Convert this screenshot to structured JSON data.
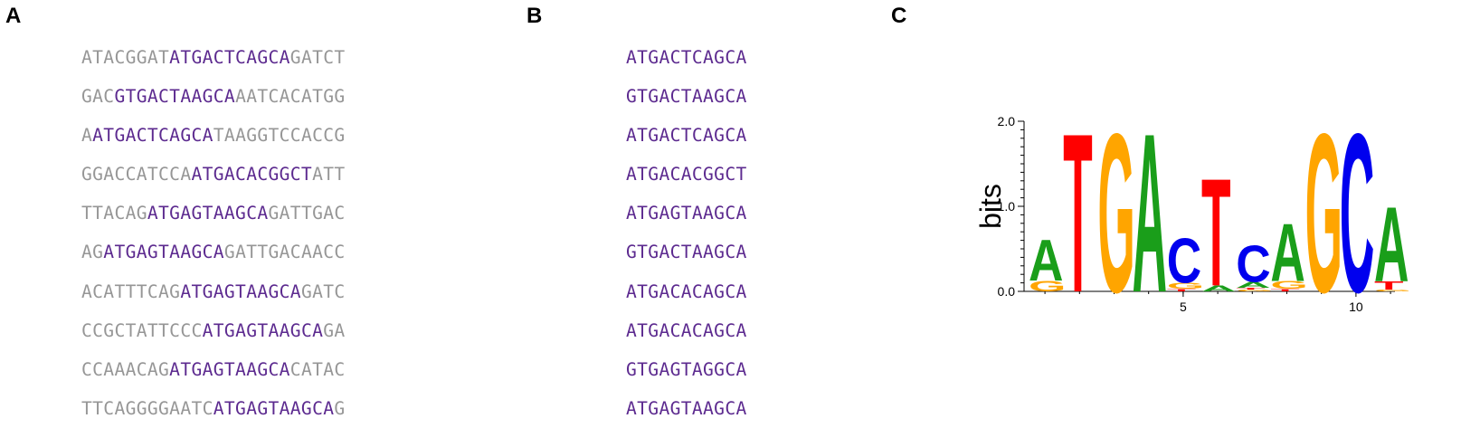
{
  "panels": {
    "a": {
      "label": "A"
    },
    "b": {
      "label": "B"
    },
    "c": {
      "label": "C"
    }
  },
  "sequences": [
    {
      "pre": "ATACGGAT",
      "site": "ATGACTCAGCA",
      "post": "GATCT"
    },
    {
      "pre": "GAC",
      "site": "GTGACTAAGCA",
      "post": "AATCACATGG"
    },
    {
      "pre": "A",
      "site": "ATGACTCAGCA",
      "post": "TAAGGTCCACCG"
    },
    {
      "pre": "GGACCATCCA",
      "site": "ATGACACGGCT",
      "post": "ATT"
    },
    {
      "pre": "TTACAG",
      "site": "ATGAGTAAGCA",
      "post": "GATTGAC"
    },
    {
      "pre": "AG",
      "site": "ATGAGTAAGCA",
      "post": "GATTGACAACC"
    },
    {
      "pre": "ACATTTCAG",
      "site": "ATGAGTAAGCA",
      "post": "GATC"
    },
    {
      "pre": "CCGCTATTCCC",
      "site": "ATGAGTAAGCA",
      "post": "GA"
    },
    {
      "pre": "CCAAACAG",
      "site": "ATGAGTAAGCA",
      "post": "CATAC"
    },
    {
      "pre": "TTCAGGGGAATC",
      "site": "ATGAGTAAGCA",
      "post": "G"
    }
  ],
  "aligned_sites": [
    "ATGACTCAGCA",
    "GTGACTAAGCA",
    "ATGACTCAGCA",
    "ATGACACGGCT",
    "ATGAGTAAGCA",
    "GTGACTAAGCA",
    "ATGACACAGCA",
    "ATGACACAGCA",
    "GTGAGTAGGCA",
    "ATGAGTAAGCA"
  ],
  "colors": {
    "flank": "#969696",
    "site": "#5c2a8f",
    "A": "#1a9e1a",
    "C": "#0000ee",
    "G": "#ffa500",
    "T": "#ff0000"
  },
  "chart_data": {
    "type": "sequence_logo",
    "ylabel": "bits",
    "xlabel": "",
    "ylim": [
      0,
      2.0
    ],
    "yticks": [
      0.0,
      1.0,
      2.0
    ],
    "ytick_labels": [
      "0.0",
      "1.0",
      "2.0"
    ],
    "xticks": [
      5,
      10
    ],
    "xtick_labels": [
      "5",
      "10"
    ],
    "positions": [
      {
        "pos": 1,
        "letters": [
          {
            "base": "G",
            "bits": 0.13
          },
          {
            "base": "A",
            "bits": 0.5
          }
        ]
      },
      {
        "pos": 2,
        "letters": [
          {
            "base": "T",
            "bits": 1.92
          }
        ]
      },
      {
        "pos": 3,
        "letters": [
          {
            "base": "G",
            "bits": 1.92
          }
        ]
      },
      {
        "pos": 4,
        "letters": [
          {
            "base": "A",
            "bits": 1.92
          }
        ]
      },
      {
        "pos": 5,
        "letters": [
          {
            "base": "T",
            "bits": 0.03
          },
          {
            "base": "G",
            "bits": 0.07
          },
          {
            "base": "C",
            "bits": 0.54
          }
        ]
      },
      {
        "pos": 6,
        "letters": [
          {
            "base": "A",
            "bits": 0.07
          },
          {
            "base": "T",
            "bits": 1.3
          }
        ]
      },
      {
        "pos": 7,
        "letters": [
          {
            "base": "G",
            "bits": 0.02
          },
          {
            "base": "T",
            "bits": 0.02
          },
          {
            "base": "A",
            "bits": 0.07
          },
          {
            "base": "C",
            "bits": 0.44
          }
        ]
      },
      {
        "pos": 8,
        "letters": [
          {
            "base": "T",
            "bits": 0.03
          },
          {
            "base": "G",
            "bits": 0.09
          },
          {
            "base": "A",
            "bits": 0.7
          }
        ]
      },
      {
        "pos": 9,
        "letters": [
          {
            "base": "G",
            "bits": 1.92
          }
        ]
      },
      {
        "pos": 10,
        "letters": [
          {
            "base": "C",
            "bits": 1.92
          }
        ]
      },
      {
        "pos": 11,
        "letters": [
          {
            "base": "G",
            "bits": 0.02
          },
          {
            "base": "T",
            "bits": 0.1
          },
          {
            "base": "A",
            "bits": 0.9
          }
        ]
      }
    ]
  }
}
